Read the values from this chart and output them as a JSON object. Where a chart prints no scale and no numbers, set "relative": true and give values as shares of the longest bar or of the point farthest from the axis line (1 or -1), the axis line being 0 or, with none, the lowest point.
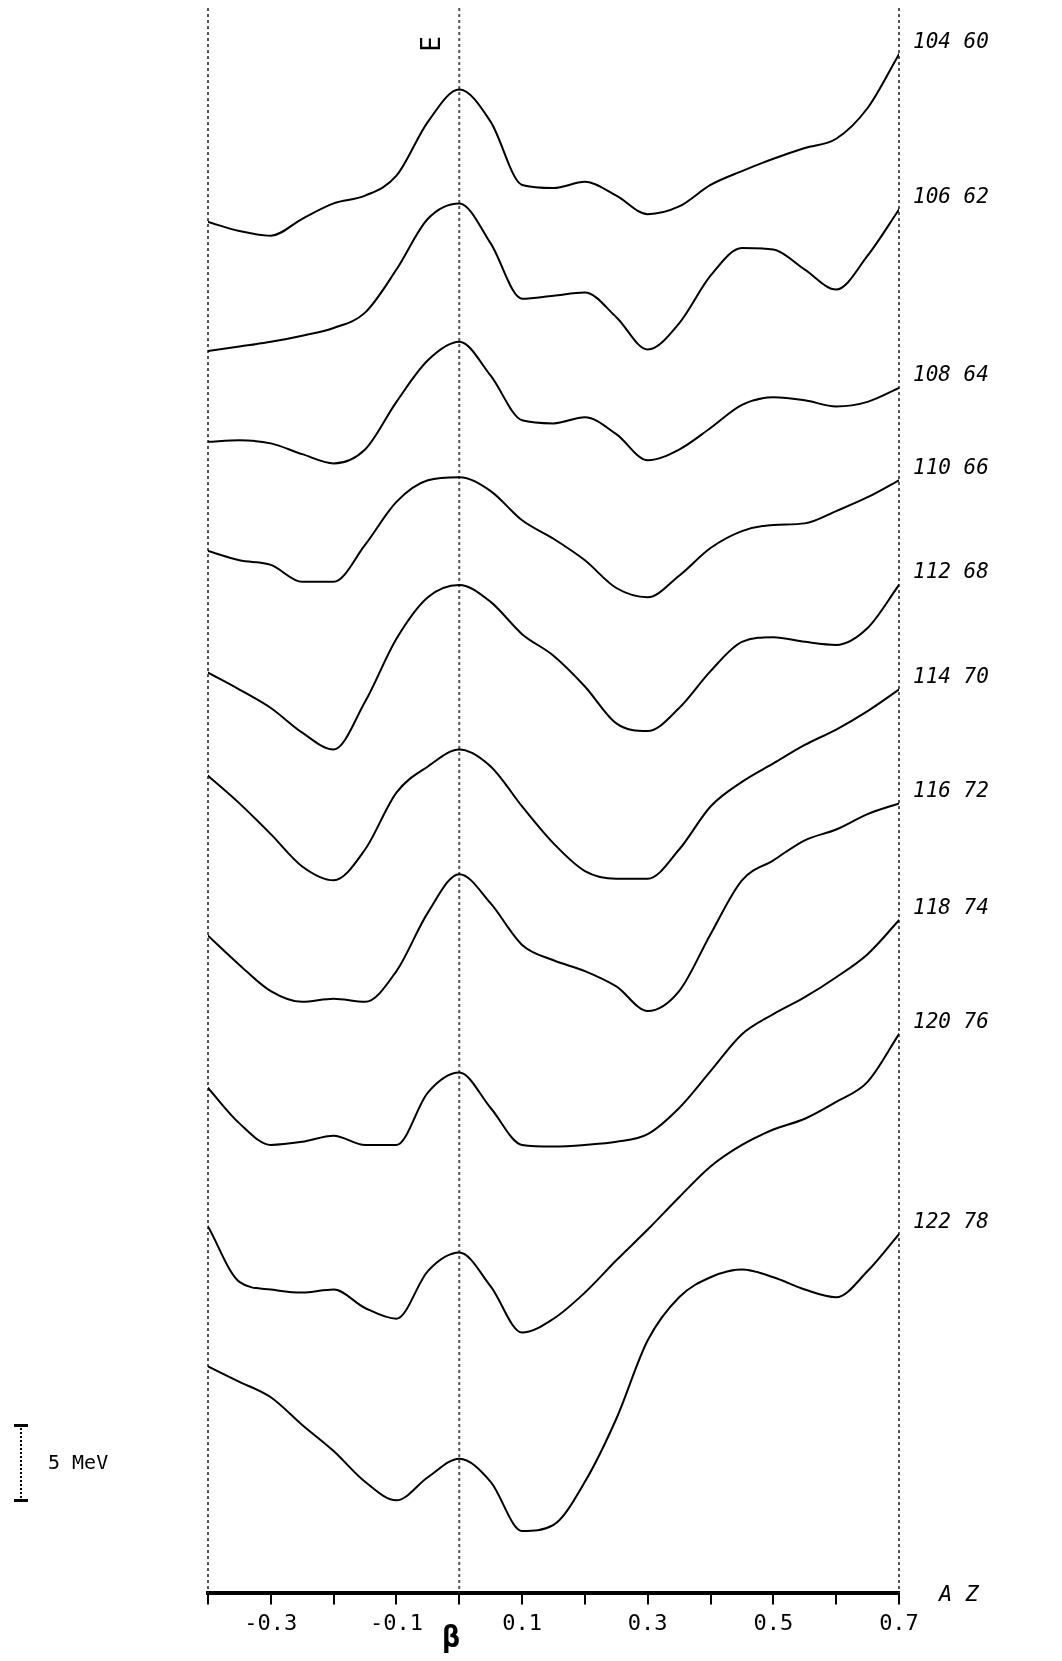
{
  "chart_data": {
    "type": "line",
    "relative": true,
    "xlabel": "β",
    "ylabel": "E",
    "marker": "none",
    "line_style": "solid",
    "legend": false,
    "grid": false,
    "x": [
      -0.4,
      -0.35,
      -0.3,
      -0.25,
      -0.2,
      -0.15,
      -0.1,
      -0.05,
      0,
      0.05,
      0.1,
      0.15,
      0.2,
      0.25,
      0.3,
      0.35,
      0.4,
      0.45,
      0.5,
      0.55,
      0.6,
      0.65,
      0.7
    ],
    "xlim": [
      -0.4,
      0.7
    ],
    "xticks": [
      {
        "value": -0.4,
        "label": null
      },
      -0.3,
      {
        "value": -0.2,
        "label": null
      },
      -0.1,
      {
        "value": 0,
        "label": null
      },
      0.1,
      {
        "value": 0.2,
        "label": null
      },
      0.3,
      {
        "value": 0.4,
        "label": null
      },
      0.5,
      {
        "value": 0.6,
        "label": null
      },
      0.7
    ],
    "tick_labels": "x",
    "ref_lines": [
      {
        "axis": "x",
        "value": 0,
        "line_style": "dotted",
        "color": "#555555"
      }
    ],
    "annotations": [
      "5 MeV",
      "A Z"
    ],
    "series": [
      {
        "name": "104 60",
        "color": "#000000",
        "values": [
          0.891,
          0.885,
          0.882,
          0.893,
          0.903,
          0.908,
          0.921,
          0.956,
          0.977,
          0.956,
          0.915,
          0.913,
          0.917,
          0.908,
          0.896,
          0.901,
          0.915,
          0.924,
          0.932,
          0.939,
          0.945,
          0.965,
          1
        ]
      },
      {
        "name": "106 62",
        "color": "#000000",
        "values": [
          0.807,
          0.81,
          0.813,
          0.817,
          0.822,
          0.832,
          0.86,
          0.893,
          0.903,
          0.877,
          0.841,
          0.843,
          0.845,
          0.829,
          0.808,
          0.825,
          0.856,
          0.874,
          0.873,
          0.86,
          0.847,
          0.869,
          0.899
        ]
      },
      {
        "name": "108 64",
        "color": "#000000",
        "values": [
          0.748,
          0.749,
          0.747,
          0.74,
          0.734,
          0.743,
          0.774,
          0.801,
          0.813,
          0.791,
          0.762,
          0.76,
          0.764,
          0.753,
          0.736,
          0.743,
          0.757,
          0.772,
          0.777,
          0.775,
          0.771,
          0.774,
          0.783
        ]
      },
      {
        "name": "110 66",
        "color": "#000000",
        "values": [
          0.677,
          0.671,
          0.668,
          0.657,
          0.657,
          0.681,
          0.709,
          0.723,
          0.725,
          0.716,
          0.697,
          0.685,
          0.671,
          0.653,
          0.647,
          0.661,
          0.679,
          0.69,
          0.694,
          0.695,
          0.703,
          0.712,
          0.723
        ]
      },
      {
        "name": "112 68",
        "color": "#000000",
        "values": [
          0.598,
          0.587,
          0.575,
          0.559,
          0.548,
          0.579,
          0.62,
          0.647,
          0.655,
          0.644,
          0.623,
          0.609,
          0.589,
          0.565,
          0.56,
          0.575,
          0.599,
          0.618,
          0.621,
          0.618,
          0.616,
          0.627,
          0.655
        ]
      },
      {
        "name": "114 70",
        "color": "#000000",
        "values": [
          0.531,
          0.513,
          0.493,
          0.472,
          0.463,
          0.483,
          0.52,
          0.537,
          0.548,
          0.537,
          0.511,
          0.487,
          0.469,
          0.464,
          0.464,
          0.483,
          0.511,
          0.527,
          0.539,
          0.551,
          0.561,
          0.573,
          0.587
        ]
      },
      {
        "name": "116 72",
        "color": "#000000",
        "values": [
          0.427,
          0.408,
          0.391,
          0.384,
          0.386,
          0.384,
          0.404,
          0.442,
          0.467,
          0.448,
          0.421,
          0.411,
          0.404,
          0.394,
          0.378,
          0.391,
          0.428,
          0.463,
          0.476,
          0.489,
          0.496,
          0.506,
          0.513
        ]
      },
      {
        "name": "118 74",
        "color": "#000000",
        "values": [
          0.328,
          0.305,
          0.291,
          0.293,
          0.297,
          0.291,
          0.291,
          0.325,
          0.338,
          0.315,
          0.291,
          0.29,
          0.291,
          0.293,
          0.298,
          0.315,
          0.339,
          0.363,
          0.376,
          0.387,
          0.4,
          0.415,
          0.437
        ]
      },
      {
        "name": "120 76",
        "color": "#000000",
        "values": [
          0.238,
          0.202,
          0.197,
          0.195,
          0.197,
          0.185,
          0.178,
          0.209,
          0.221,
          0.199,
          0.169,
          0.178,
          0.195,
          0.216,
          0.236,
          0.257,
          0.277,
          0.291,
          0.301,
          0.308,
          0.319,
          0.332,
          0.363
        ]
      },
      {
        "name": "122 78",
        "color": "#000000",
        "values": [
          0.147,
          0.137,
          0.127,
          0.109,
          0.092,
          0.072,
          0.06,
          0.075,
          0.087,
          0.072,
          0.04,
          0.044,
          0.072,
          0.113,
          0.164,
          0.192,
          0.205,
          0.21,
          0.205,
          0.197,
          0.192,
          0.209,
          0.233
        ]
      }
    ]
  }
}
